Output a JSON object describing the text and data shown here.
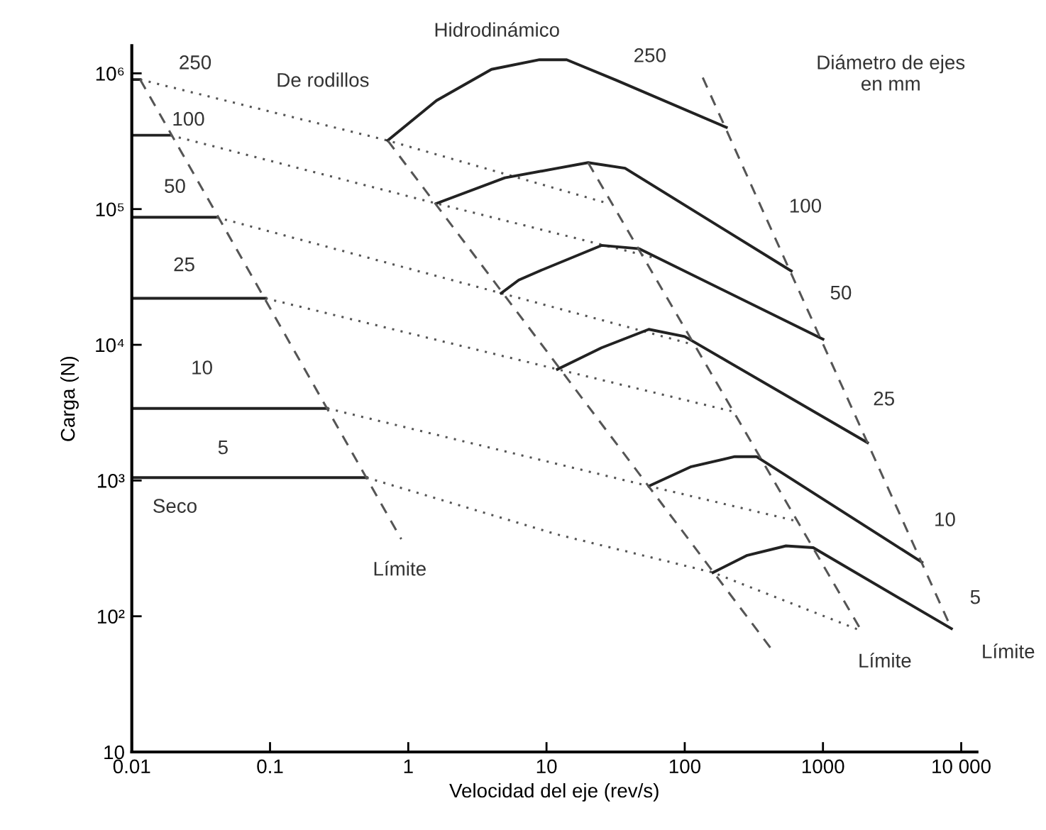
{
  "chart_data": {
    "type": "line",
    "xlabel": "Velocidad del eje (rev/s)",
    "ylabel": "Carga (N)",
    "log": "xy",
    "grid": false,
    "marker": "none",
    "xlim": [
      0.01,
      13000
    ],
    "ylim": [
      10,
      1600000
    ],
    "xticks": [
      0.01,
      0.1,
      1,
      10,
      100,
      1000,
      {
        "value": 10000,
        "label": "10 000"
      }
    ],
    "yticks": [
      10,
      {
        "value": 100,
        "label": "10²"
      },
      {
        "value": 1000,
        "label": "10³"
      },
      {
        "value": 10000,
        "label": "10⁴"
      },
      {
        "value": 100000,
        "label": "10⁵"
      },
      {
        "value": 1000000,
        "label": "10⁶"
      }
    ],
    "series": [
      {
        "color": "#222222",
        "line_style": "solid",
        "x": [
          0.01,
          0.0115
        ],
        "values": [
          900000,
          900000
        ]
      },
      {
        "color": "#222222",
        "line_style": "solid",
        "x": [
          0.01,
          0.019
        ],
        "values": [
          350000,
          350000
        ]
      },
      {
        "color": "#222222",
        "line_style": "solid",
        "x": [
          0.01,
          0.041
        ],
        "values": [
          87000,
          87000
        ]
      },
      {
        "color": "#222222",
        "line_style": "solid",
        "x": [
          0.01,
          0.093
        ],
        "values": [
          22000,
          22000
        ]
      },
      {
        "color": "#222222",
        "line_style": "solid",
        "x": [
          0.01,
          0.26
        ],
        "values": [
          3400,
          3400
        ]
      },
      {
        "color": "#222222",
        "line_style": "solid",
        "x": [
          0.01,
          0.5
        ],
        "values": [
          1050,
          1050
        ]
      },
      {
        "color": "#555555",
        "line_style": "dotted",
        "x": [
          0.0115,
          0.71,
          28
        ],
        "values": [
          900000,
          320000,
          110000
        ]
      },
      {
        "color": "#555555",
        "line_style": "dotted",
        "x": [
          0.019,
          1.6,
          59
        ],
        "values": [
          350000,
          110000,
          44000
        ]
      },
      {
        "color": "#555555",
        "line_style": "dotted",
        "x": [
          0.041,
          4.7,
          117
        ],
        "values": [
          87000,
          24000,
          10000
        ]
      },
      {
        "color": "#555555",
        "line_style": "dotted",
        "x": [
          0.093,
          12,
          230
        ],
        "values": [
          22000,
          6600,
          3200
        ]
      },
      {
        "color": "#555555",
        "line_style": "dotted",
        "x": [
          0.26,
          55,
          660
        ],
        "values": [
          3400,
          910,
          500
        ]
      },
      {
        "color": "#555555",
        "line_style": "dotted",
        "x": [
          0.5,
          12,
          160,
          1900
        ],
        "values": [
          1050,
          400,
          210,
          78
        ]
      },
      {
        "color": "#222222",
        "line_style": "solid",
        "x": [
          0.71,
          1.6,
          4,
          8.9,
          14,
          32,
          200
        ],
        "values": [
          320000,
          630000,
          1070000,
          1260000,
          1260000,
          890000,
          400000
        ]
      },
      {
        "color": "#222222",
        "line_style": "solid",
        "x": [
          1.6,
          5,
          12,
          20,
          37,
          590
        ],
        "values": [
          110000,
          170000,
          200000,
          220000,
          200000,
          35000
        ]
      },
      {
        "color": "#222222",
        "line_style": "solid",
        "x": [
          4.7,
          6.3,
          8.9,
          25,
          47,
          1000
        ],
        "values": [
          24000,
          30000,
          35000,
          54000,
          51000,
          11000
        ]
      },
      {
        "color": "#222222",
        "line_style": "solid",
        "x": [
          12,
          25,
          55,
          100,
          2100
        ],
        "values": [
          6600,
          9500,
          13000,
          11500,
          1900
        ]
      },
      {
        "color": "#222222",
        "line_style": "solid",
        "x": [
          55,
          110,
          230,
          330,
          5200
        ],
        "values": [
          910,
          1260,
          1500,
          1500,
          250
        ]
      },
      {
        "color": "#222222",
        "line_style": "solid",
        "x": [
          160,
          280,
          540,
          850,
          8500
        ],
        "values": [
          210,
          280,
          330,
          320,
          81
        ]
      },
      {
        "color": "#555555",
        "line_style": "dashed",
        "x": [
          0.0115,
          0.89
        ],
        "values": [
          900000,
          370
        ]
      },
      {
        "color": "#555555",
        "line_style": "dashed",
        "x": [
          0.71,
          420
        ],
        "values": [
          320000,
          58
        ]
      },
      {
        "color": "#555555",
        "line_style": "dashed",
        "x": [
          20,
          1900
        ],
        "values": [
          220000,
          78
        ]
      },
      {
        "color": "#555555",
        "line_style": "dashed",
        "x": [
          135,
          8500
        ],
        "values": [
          930000,
          81
        ]
      }
    ],
    "annotations": [
      "Hidrodinámico",
      "De rodillos",
      "Diámetro de ejes\nen mm",
      "Seco",
      "Límite",
      "Límite",
      "Límite",
      "250",
      "100",
      "50",
      "25",
      "10",
      "5",
      "250",
      "100",
      "50",
      "25",
      "10",
      "5"
    ]
  }
}
